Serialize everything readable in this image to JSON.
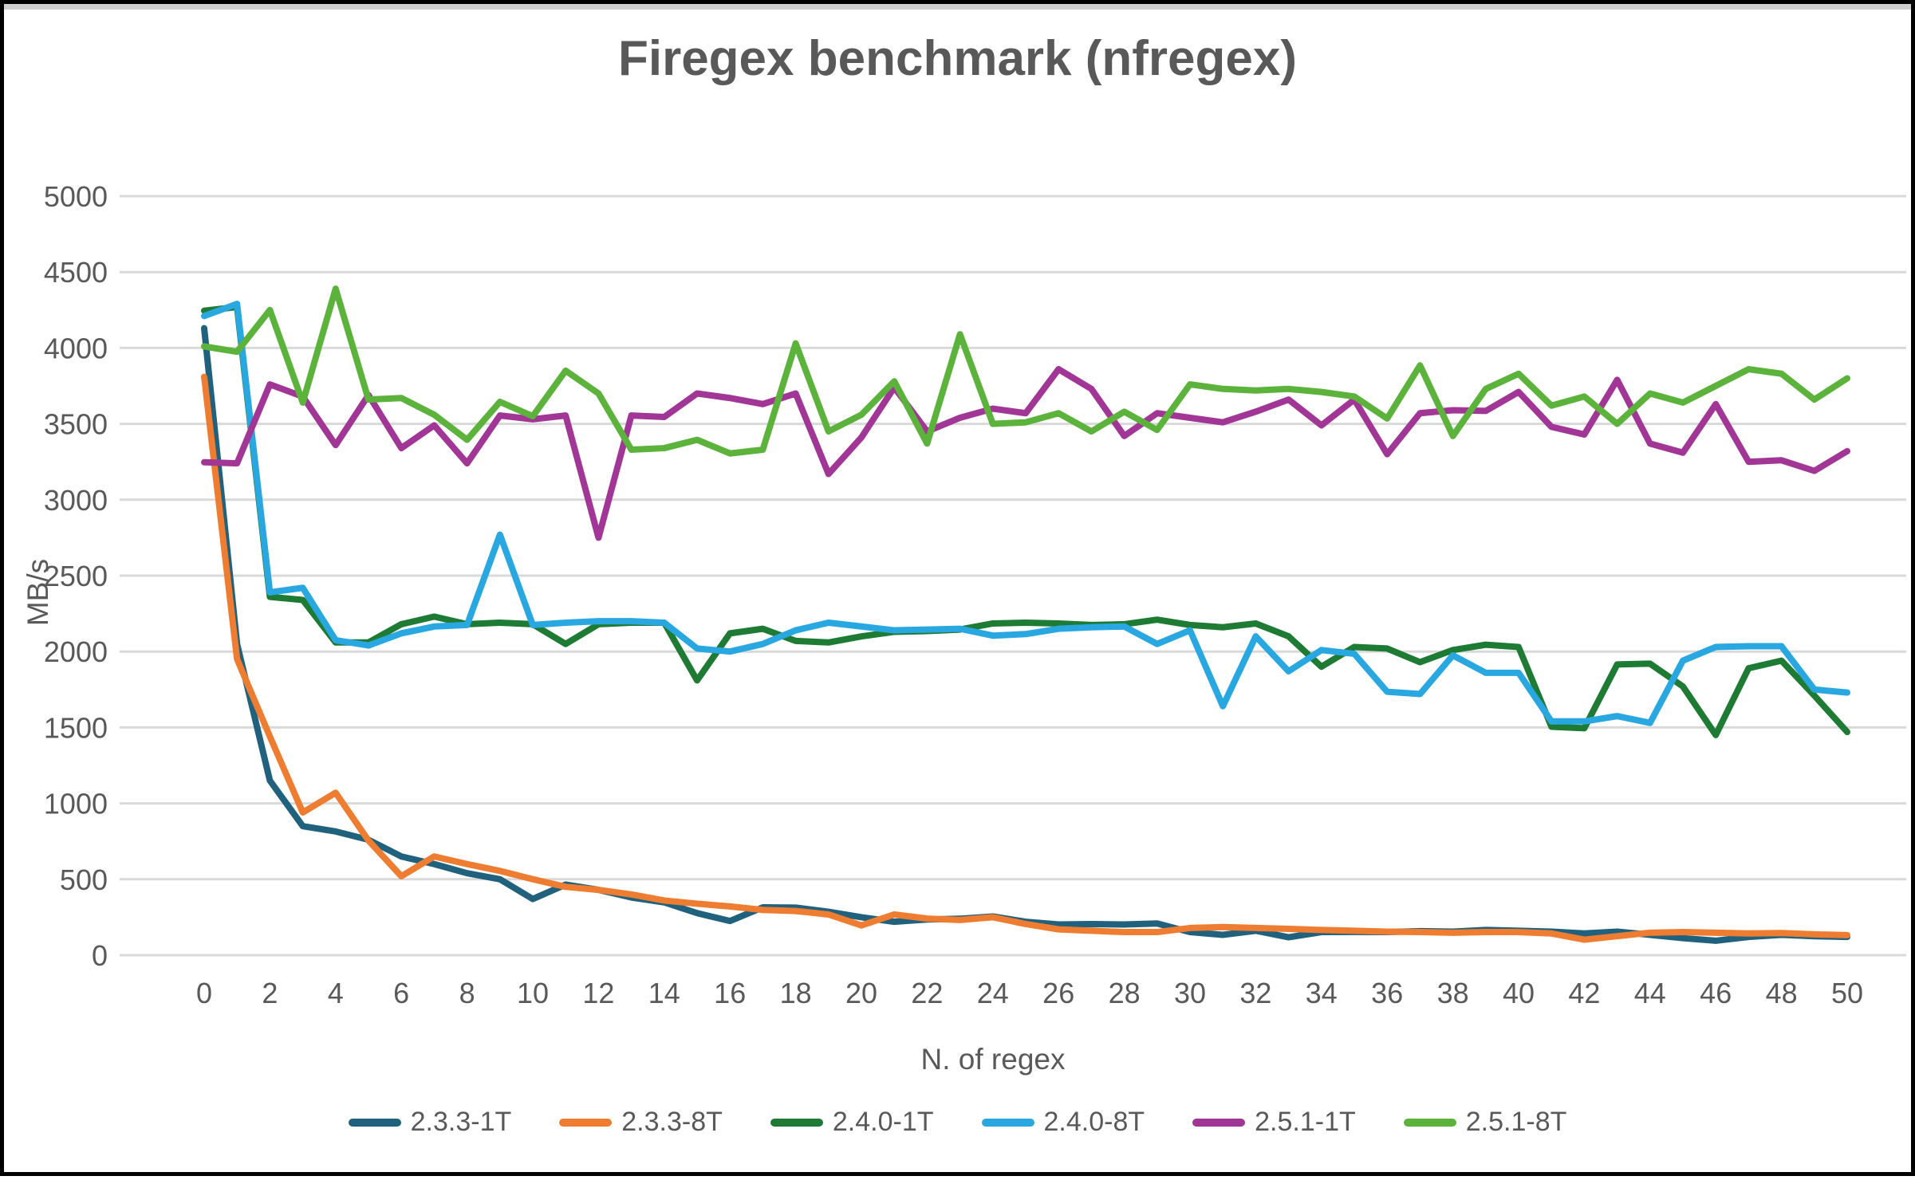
{
  "chart_data": {
    "type": "line",
    "title": "Firegex benchmark (nfregex)",
    "xlabel": "N. of regex",
    "ylabel": "MB/s",
    "xlim": [
      0,
      50
    ],
    "ylim": [
      0,
      5000
    ],
    "x_ticks": [
      0,
      2,
      4,
      6,
      8,
      10,
      12,
      14,
      16,
      18,
      20,
      22,
      24,
      26,
      28,
      30,
      32,
      34,
      36,
      38,
      40,
      42,
      44,
      46,
      48,
      50
    ],
    "y_ticks": [
      0,
      500,
      1000,
      1500,
      2000,
      2500,
      3000,
      3500,
      4000,
      4500,
      5000
    ],
    "grid": "horizontal",
    "gridline_color": "#d9d9d9",
    "legend_position": "bottom",
    "x": [
      0,
      1,
      2,
      3,
      4,
      5,
      6,
      7,
      8,
      9,
      10,
      11,
      12,
      13,
      14,
      15,
      16,
      17,
      18,
      19,
      20,
      21,
      22,
      23,
      24,
      25,
      26,
      27,
      28,
      29,
      30,
      31,
      32,
      33,
      34,
      35,
      36,
      37,
      38,
      39,
      40,
      41,
      42,
      43,
      44,
      45,
      46,
      47,
      48,
      49,
      50
    ],
    "series": [
      {
        "name": "2.3.3-1T",
        "color": "#20617D",
        "values": [
          4130,
          2050,
          1150,
          850,
          815,
          760,
          650,
          600,
          540,
          500,
          370,
          465,
          430,
          380,
          348,
          277,
          225,
          315,
          313,
          286,
          250,
          220,
          235,
          240,
          255,
          220,
          202,
          205,
          202,
          209,
          152,
          134,
          161,
          118,
          152,
          153,
          152,
          158,
          155,
          166,
          161,
          155,
          143,
          155,
          134,
          112,
          95,
          120,
          134,
          125,
          120
        ]
      },
      {
        "name": "2.3.3-8T",
        "color": "#EE7D31",
        "values": [
          3810,
          1950,
          1440,
          940,
          1070,
          755,
          520,
          650,
          600,
          555,
          500,
          450,
          430,
          400,
          360,
          339,
          321,
          298,
          291,
          268,
          196,
          268,
          241,
          232,
          250,
          205,
          170,
          161,
          152,
          152,
          179,
          185,
          179,
          173,
          166,
          161,
          155,
          152,
          148,
          152,
          152,
          143,
          102,
          125,
          148,
          152,
          148,
          143,
          146,
          137,
          132
        ]
      },
      {
        "name": "2.4.0-1T",
        "color": "#1E7B34",
        "values": [
          4245,
          4270,
          2360,
          2340,
          2060,
          2060,
          2180,
          2230,
          2180,
          2190,
          2180,
          2050,
          2180,
          2190,
          2190,
          1810,
          2120,
          2150,
          2070,
          2060,
          2100,
          2130,
          2135,
          2145,
          2185,
          2190,
          2185,
          2175,
          2180,
          2210,
          2175,
          2160,
          2185,
          2100,
          1900,
          2030,
          2020,
          1930,
          2010,
          2045,
          2030,
          1505,
          1495,
          1915,
          1920,
          1770,
          1450,
          1890,
          1940,
          1710,
          1470
        ]
      },
      {
        "name": "2.4.0-8T",
        "color": "#29A7E1",
        "values": [
          4210,
          4290,
          2390,
          2420,
          2075,
          2040,
          2120,
          2165,
          2175,
          2770,
          2175,
          2190,
          2200,
          2200,
          2190,
          2020,
          2000,
          2050,
          2140,
          2190,
          2165,
          2140,
          2145,
          2150,
          2105,
          2115,
          2150,
          2160,
          2165,
          2050,
          2140,
          1640,
          2100,
          1870,
          2010,
          1985,
          1735,
          1720,
          1975,
          1860,
          1860,
          1540,
          1540,
          1575,
          1530,
          1940,
          2030,
          2035,
          2035,
          1750,
          1730
        ]
      },
      {
        "name": "2.5.1-1T",
        "color": "#A23697",
        "values": [
          3247,
          3240,
          3760,
          3680,
          3360,
          3690,
          3340,
          3490,
          3240,
          3555,
          3530,
          3555,
          2750,
          3555,
          3545,
          3700,
          3670,
          3630,
          3700,
          3170,
          3410,
          3740,
          3450,
          3540,
          3600,
          3570,
          3860,
          3730,
          3420,
          3570,
          3540,
          3510,
          3580,
          3660,
          3490,
          3660,
          3300,
          3570,
          3590,
          3585,
          3710,
          3480,
          3430,
          3790,
          3370,
          3310,
          3630,
          3250,
          3260,
          3190,
          3320
        ]
      },
      {
        "name": "2.5.1-8T",
        "color": "#5CB33C",
        "values": [
          4010,
          3975,
          4250,
          3640,
          4390,
          3660,
          3670,
          3560,
          3395,
          3645,
          3550,
          3850,
          3700,
          3330,
          3340,
          3395,
          3305,
          3330,
          4030,
          3450,
          3560,
          3780,
          3370,
          4090,
          3500,
          3510,
          3570,
          3450,
          3580,
          3460,
          3760,
          3730,
          3720,
          3730,
          3710,
          3680,
          3535,
          3885,
          3420,
          3730,
          3830,
          3620,
          3680,
          3500,
          3700,
          3640,
          3750,
          3860,
          3830,
          3660,
          3800
        ]
      }
    ]
  }
}
